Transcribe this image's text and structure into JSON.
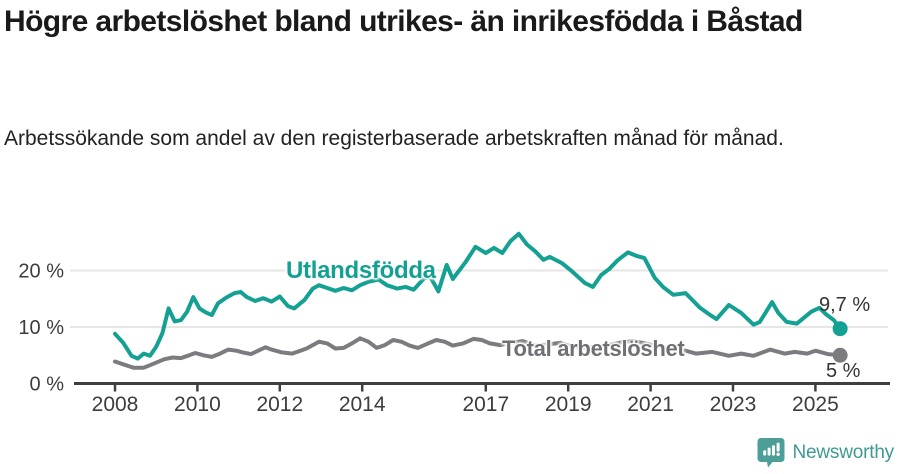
{
  "header": {
    "title": "Högre arbetslöshet bland utrikes- än inrikesfödda i Båstad",
    "subtitle": "Arbetssökande som andel av den registerbaserade arbetskraften månad för månad."
  },
  "footer": {
    "brand": "Newsworthy",
    "logo_icon": "newsworthy-chart-bubble-icon"
  },
  "colors": {
    "accent_teal": "#14a092",
    "series_gray": "#7b7b80",
    "label_gray": "#6f6f74",
    "logo_teal": "#3f9a93",
    "grid": "#e6e6e6",
    "axis": "#3f3f3f",
    "tick_text": "#3d3d3d",
    "title_text": "#1a1a1a"
  },
  "chart_data": {
    "type": "line",
    "title": "Högre arbetslöshet bland utrikes- än inrikesfödda i Båstad",
    "subtitle": "Arbetssökande som andel av den registerbaserade arbetskraften månad för månad.",
    "xlabel": "",
    "ylabel": "",
    "grid": "horizontal",
    "legend_position": "inline-labels",
    "xlim": [
      2007.0,
      2026.8
    ],
    "ylim": [
      0,
      30
    ],
    "x_ticks": [
      2008,
      2010,
      2012,
      2014,
      2017,
      2019,
      2021,
      2023,
      2025
    ],
    "y_ticks": [
      {
        "value": 0,
        "label": "0 %"
      },
      {
        "value": 10,
        "label": "10 %"
      },
      {
        "value": 20,
        "label": "20 %"
      }
    ],
    "series": [
      {
        "name": "Utlandsfödda",
        "color": "#14a092",
        "end_label": "9,7 %",
        "end_value": 9.7,
        "points": [
          [
            2008.0,
            8.8
          ],
          [
            2008.2,
            7.2
          ],
          [
            2008.4,
            4.9
          ],
          [
            2008.55,
            4.4
          ],
          [
            2008.7,
            5.3
          ],
          [
            2008.85,
            4.9
          ],
          [
            2009.0,
            6.5
          ],
          [
            2009.15,
            8.9
          ],
          [
            2009.3,
            13.3
          ],
          [
            2009.45,
            11.0
          ],
          [
            2009.6,
            11.2
          ],
          [
            2009.75,
            12.7
          ],
          [
            2009.9,
            15.3
          ],
          [
            2010.05,
            13.3
          ],
          [
            2010.2,
            12.6
          ],
          [
            2010.35,
            12.1
          ],
          [
            2010.5,
            14.2
          ],
          [
            2010.7,
            15.2
          ],
          [
            2010.9,
            16.0
          ],
          [
            2011.05,
            16.2
          ],
          [
            2011.2,
            15.3
          ],
          [
            2011.4,
            14.6
          ],
          [
            2011.6,
            15.1
          ],
          [
            2011.8,
            14.5
          ],
          [
            2012.0,
            15.4
          ],
          [
            2012.2,
            13.7
          ],
          [
            2012.35,
            13.3
          ],
          [
            2012.6,
            14.8
          ],
          [
            2012.8,
            16.8
          ],
          [
            2012.95,
            17.4
          ],
          [
            2013.15,
            16.9
          ],
          [
            2013.35,
            16.4
          ],
          [
            2013.55,
            16.9
          ],
          [
            2013.75,
            16.5
          ],
          [
            2013.95,
            17.4
          ],
          [
            2014.15,
            18.0
          ],
          [
            2014.4,
            18.4
          ],
          [
            2014.6,
            17.4
          ],
          [
            2014.85,
            16.8
          ],
          [
            2015.05,
            17.1
          ],
          [
            2015.25,
            16.6
          ],
          [
            2015.5,
            18.6
          ],
          [
            2015.65,
            18.9
          ],
          [
            2015.85,
            16.3
          ],
          [
            2016.05,
            21.0
          ],
          [
            2016.2,
            18.5
          ],
          [
            2016.5,
            21.4
          ],
          [
            2016.75,
            24.2
          ],
          [
            2017.0,
            23.1
          ],
          [
            2017.2,
            24.0
          ],
          [
            2017.4,
            23.1
          ],
          [
            2017.6,
            25.2
          ],
          [
            2017.8,
            26.5
          ],
          [
            2018.0,
            24.6
          ],
          [
            2018.2,
            23.4
          ],
          [
            2018.4,
            21.9
          ],
          [
            2018.55,
            22.4
          ],
          [
            2018.85,
            21.3
          ],
          [
            2019.1,
            19.8
          ],
          [
            2019.4,
            17.8
          ],
          [
            2019.6,
            17.1
          ],
          [
            2019.8,
            19.2
          ],
          [
            2020.0,
            20.3
          ],
          [
            2020.2,
            21.8
          ],
          [
            2020.45,
            23.2
          ],
          [
            2020.65,
            22.6
          ],
          [
            2020.85,
            22.2
          ],
          [
            2021.1,
            18.7
          ],
          [
            2021.3,
            17.1
          ],
          [
            2021.55,
            15.7
          ],
          [
            2021.85,
            16.0
          ],
          [
            2022.2,
            13.4
          ],
          [
            2022.45,
            12.1
          ],
          [
            2022.6,
            11.4
          ],
          [
            2022.9,
            13.9
          ],
          [
            2023.2,
            12.5
          ],
          [
            2023.5,
            10.4
          ],
          [
            2023.65,
            10.9
          ],
          [
            2023.95,
            14.4
          ],
          [
            2024.1,
            12.5
          ],
          [
            2024.3,
            10.9
          ],
          [
            2024.55,
            10.6
          ],
          [
            2024.9,
            12.7
          ],
          [
            2025.1,
            13.4
          ],
          [
            2025.25,
            12.3
          ],
          [
            2025.45,
            11.2
          ],
          [
            2025.6,
            9.7
          ]
        ]
      },
      {
        "name": "Total arbetslöshet",
        "color": "#7b7b80",
        "end_label": "5 %",
        "end_value": 5.0,
        "points": [
          [
            2008.0,
            3.9
          ],
          [
            2008.2,
            3.4
          ],
          [
            2008.45,
            2.8
          ],
          [
            2008.7,
            2.8
          ],
          [
            2008.9,
            3.4
          ],
          [
            2009.2,
            4.3
          ],
          [
            2009.4,
            4.6
          ],
          [
            2009.6,
            4.5
          ],
          [
            2009.8,
            5.0
          ],
          [
            2009.95,
            5.4
          ],
          [
            2010.15,
            5.0
          ],
          [
            2010.35,
            4.7
          ],
          [
            2010.55,
            5.3
          ],
          [
            2010.75,
            6.0
          ],
          [
            2010.95,
            5.8
          ],
          [
            2011.1,
            5.5
          ],
          [
            2011.3,
            5.2
          ],
          [
            2011.5,
            5.9
          ],
          [
            2011.65,
            6.4
          ],
          [
            2011.8,
            6.0
          ],
          [
            2012.05,
            5.5
          ],
          [
            2012.3,
            5.3
          ],
          [
            2012.65,
            6.2
          ],
          [
            2012.95,
            7.4
          ],
          [
            2013.15,
            7.1
          ],
          [
            2013.35,
            6.2
          ],
          [
            2013.55,
            6.3
          ],
          [
            2013.75,
            7.1
          ],
          [
            2013.95,
            8.0
          ],
          [
            2014.15,
            7.4
          ],
          [
            2014.35,
            6.3
          ],
          [
            2014.55,
            6.8
          ],
          [
            2014.75,
            7.7
          ],
          [
            2014.95,
            7.4
          ],
          [
            2015.15,
            6.7
          ],
          [
            2015.35,
            6.3
          ],
          [
            2015.6,
            7.1
          ],
          [
            2015.8,
            7.7
          ],
          [
            2016.0,
            7.4
          ],
          [
            2016.2,
            6.7
          ],
          [
            2016.45,
            7.1
          ],
          [
            2016.7,
            7.9
          ],
          [
            2016.9,
            7.7
          ],
          [
            2017.1,
            7.1
          ],
          [
            2017.35,
            6.8
          ],
          [
            2017.6,
            7.2
          ],
          [
            2017.9,
            7.5
          ],
          [
            2018.2,
            6.7
          ],
          [
            2018.5,
            6.9
          ],
          [
            2018.8,
            7.2
          ],
          [
            2019.1,
            6.5
          ],
          [
            2019.4,
            6.3
          ],
          [
            2019.7,
            6.6
          ],
          [
            2020.0,
            6.8
          ],
          [
            2020.3,
            7.3
          ],
          [
            2020.55,
            7.5
          ],
          [
            2020.8,
            7.2
          ],
          [
            2021.1,
            6.7
          ],
          [
            2021.4,
            6.3
          ],
          [
            2021.7,
            6.1
          ],
          [
            2022.1,
            5.3
          ],
          [
            2022.5,
            5.6
          ],
          [
            2022.9,
            4.9
          ],
          [
            2023.2,
            5.3
          ],
          [
            2023.5,
            4.9
          ],
          [
            2023.9,
            6.0
          ],
          [
            2024.25,
            5.3
          ],
          [
            2024.5,
            5.6
          ],
          [
            2024.8,
            5.3
          ],
          [
            2025.0,
            5.8
          ],
          [
            2025.3,
            5.2
          ],
          [
            2025.6,
            5.0
          ]
        ]
      }
    ]
  }
}
